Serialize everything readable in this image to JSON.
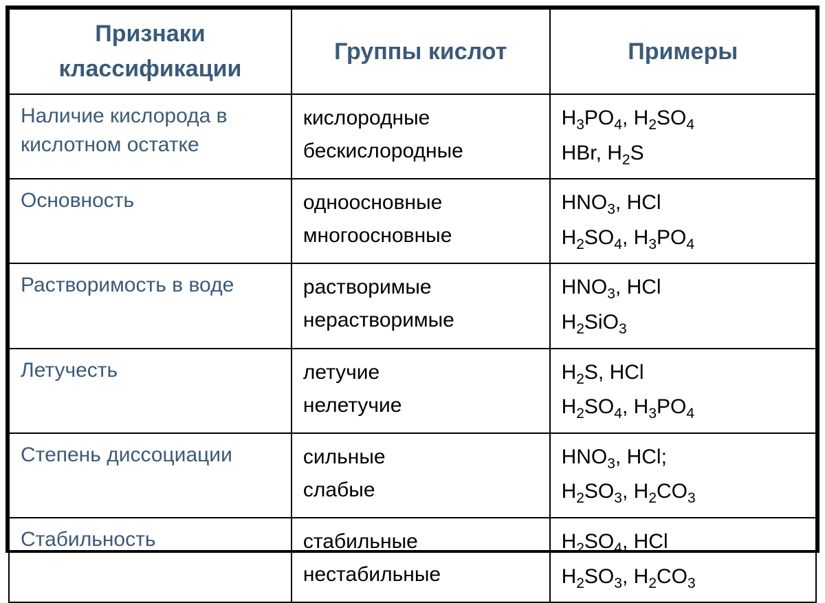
{
  "table": {
    "header_color": "#3b5a78",
    "criteria_color": "#3b5a78",
    "text_color": "#000000",
    "border_color": "#000000",
    "header_fontsize": 34,
    "body_fontsize": 30,
    "columns": [
      {
        "key": "criteria",
        "label": "Признаки классификации",
        "width_pct": 35
      },
      {
        "key": "groups",
        "label": "Группы кислот",
        "width_pct": 32
      },
      {
        "key": "examples",
        "label": "Примеры",
        "width_pct": 33
      }
    ],
    "rows": [
      {
        "criteria": "Наличие кислорода в кислотном остатке",
        "groups": [
          "кислородные",
          "бескислородные"
        ],
        "examples": [
          [
            {
              "t": "H"
            },
            {
              "sub": "3"
            },
            {
              "t": "PO"
            },
            {
              "sub": "4"
            },
            {
              "t": ", H"
            },
            {
              "sub": "2"
            },
            {
              "t": "SO"
            },
            {
              "sub": "4"
            }
          ],
          [
            {
              "t": " HBr, H"
            },
            {
              "sub": "2"
            },
            {
              "t": "S"
            }
          ]
        ]
      },
      {
        "criteria": "Основность",
        "groups": [
          "одноосновные",
          "многоосновные"
        ],
        "examples": [
          [
            {
              "t": "HNO"
            },
            {
              "sub": "3"
            },
            {
              "t": ", HCl"
            }
          ],
          [
            {
              "t": "H"
            },
            {
              "sub": "2"
            },
            {
              "t": "SO"
            },
            {
              "sub": "4"
            },
            {
              "t": ", H"
            },
            {
              "sub": "3"
            },
            {
              "t": "PO"
            },
            {
              "sub": "4"
            }
          ]
        ]
      },
      {
        "criteria": "Растворимость в воде",
        "groups": [
          "растворимые",
          "нерастворимые"
        ],
        "examples": [
          [
            {
              "t": "HNO"
            },
            {
              "sub": "3"
            },
            {
              "t": ", HCl"
            }
          ],
          [
            {
              "t": "H"
            },
            {
              "sub": "2"
            },
            {
              "t": "SiO"
            },
            {
              "sub": "3"
            }
          ]
        ]
      },
      {
        "criteria": "Летучесть",
        "groups": [
          "летучие",
          "нелетучие"
        ],
        "examples": [
          [
            {
              "t": "H"
            },
            {
              "sub": "2"
            },
            {
              "t": "S, HCl"
            }
          ],
          [
            {
              "t": "H"
            },
            {
              "sub": "2"
            },
            {
              "t": "SO"
            },
            {
              "sub": "4"
            },
            {
              "t": ", H"
            },
            {
              "sub": "3"
            },
            {
              "t": "PO"
            },
            {
              "sub": "4"
            }
          ]
        ]
      },
      {
        "criteria": "Степень диссоциации",
        "groups": [
          "сильные",
          "слабые"
        ],
        "examples": [
          [
            {
              "t": "HNO"
            },
            {
              "sub": "3"
            },
            {
              "t": ", HCl;"
            }
          ],
          [
            {
              "t": " H"
            },
            {
              "sub": "2"
            },
            {
              "t": "SO"
            },
            {
              "sub": "3"
            },
            {
              "t": ", H"
            },
            {
              "sub": "2"
            },
            {
              "t": "CO"
            },
            {
              "sub": "3"
            }
          ]
        ]
      },
      {
        "criteria": "Стабильность",
        "groups": [
          "стабильные",
          "нестабильные"
        ],
        "examples": [
          [
            {
              "t": " H"
            },
            {
              "sub": "2"
            },
            {
              "t": "SO"
            },
            {
              "sub": "4"
            },
            {
              "t": ", HCl"
            }
          ],
          [
            {
              "t": " H"
            },
            {
              "sub": "2"
            },
            {
              "t": "SO"
            },
            {
              "sub": "3"
            },
            {
              "t": ", H"
            },
            {
              "sub": "2"
            },
            {
              "t": "CO"
            },
            {
              "sub": "3"
            }
          ]
        ]
      }
    ]
  }
}
